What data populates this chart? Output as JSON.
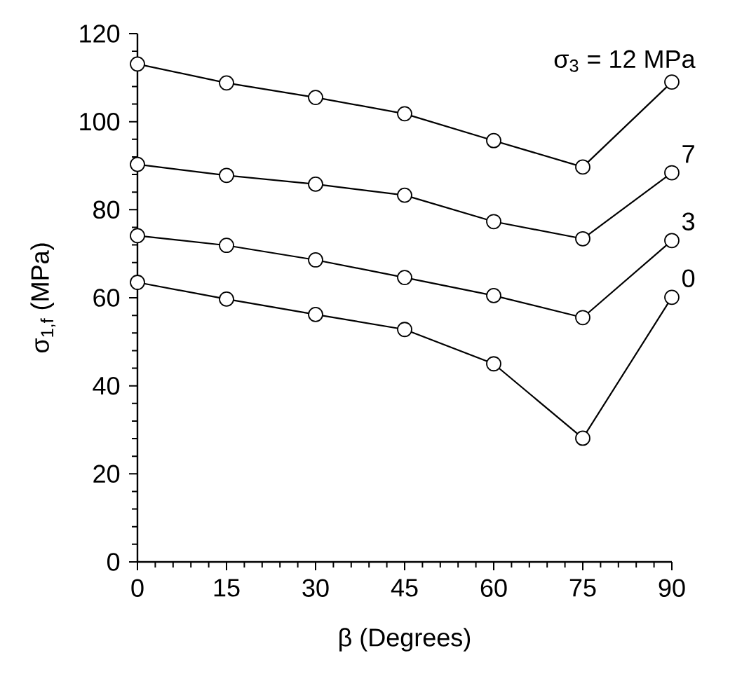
{
  "chart_data": {
    "type": "line",
    "xlabel": "β (Degrees)",
    "ylabel": "σ$_{1,f}$ (MPa)",
    "x": [
      0,
      15,
      30,
      45,
      60,
      75,
      90
    ],
    "series": [
      {
        "name": "σ$_{3}$ = 12 MPa",
        "color": "#000000",
        "values": [
          113.1,
          108.8,
          105.5,
          101.8,
          95.7,
          89.7,
          109.0
        ]
      },
      {
        "name": "7",
        "color": "#000000",
        "values": [
          90.3,
          87.8,
          85.8,
          83.3,
          77.3,
          73.4,
          88.4
        ]
      },
      {
        "name": "3",
        "color": "#000000",
        "values": [
          74.1,
          71.9,
          68.6,
          64.6,
          60.5,
          55.5,
          73.0
        ]
      },
      {
        "name": "0",
        "color": "#000000",
        "values": [
          63.5,
          59.7,
          56.2,
          52.8,
          45.0,
          28.1,
          60.1
        ]
      }
    ],
    "xlim": [
      0,
      90
    ],
    "xticks": [
      0,
      15,
      30,
      45,
      60,
      75,
      90
    ],
    "ylim": [
      0,
      120
    ],
    "yticks": [
      0,
      20,
      40,
      60,
      80,
      100,
      120
    ],
    "grid": false,
    "legend": false,
    "marker": "circle",
    "line_style": "solid"
  }
}
